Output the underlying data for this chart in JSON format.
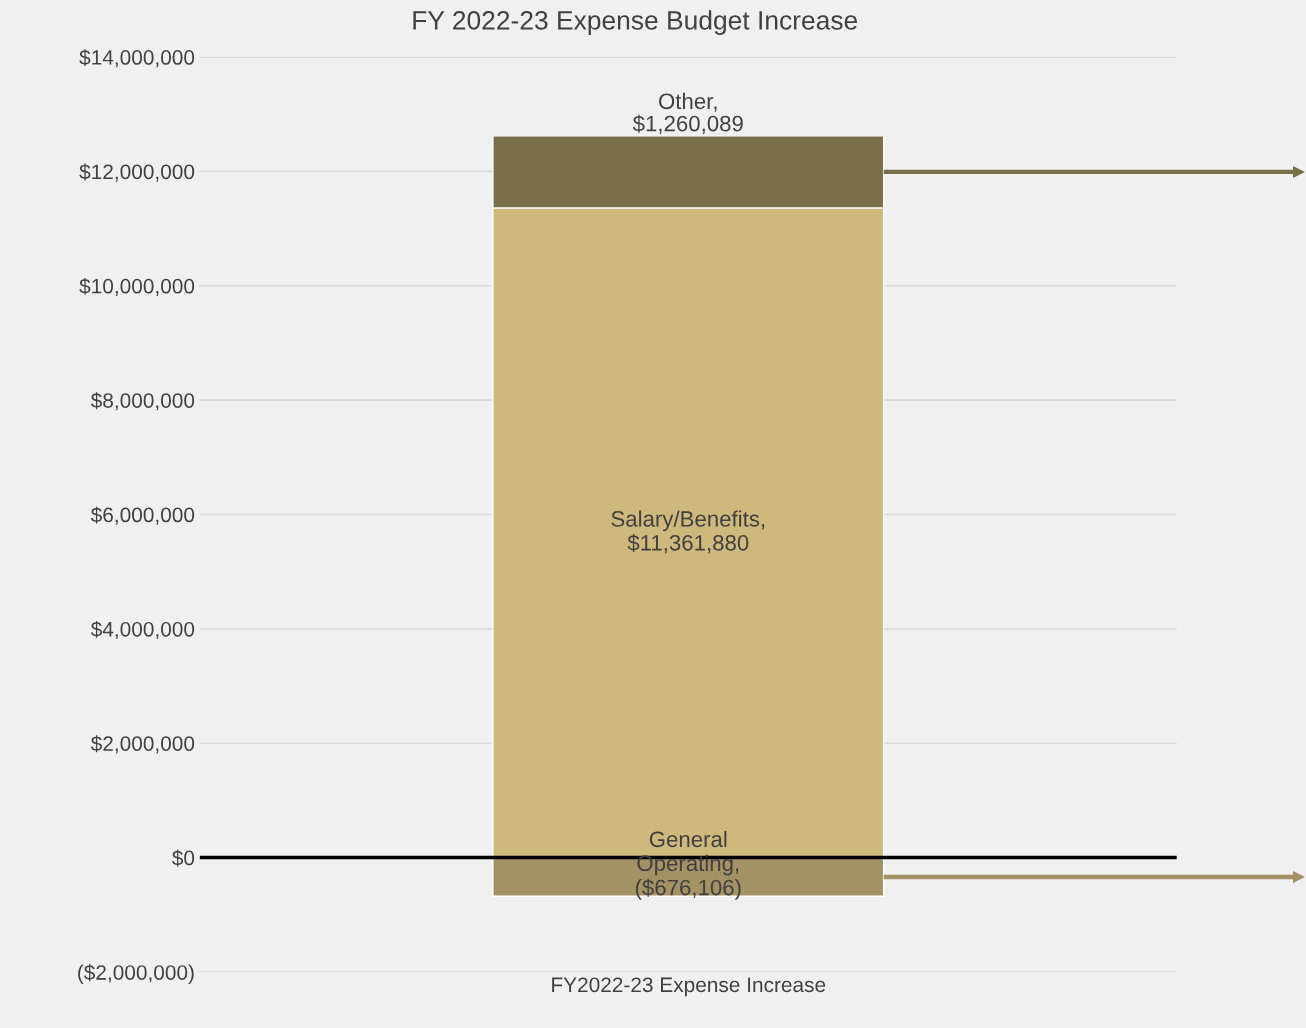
{
  "chart_data": {
    "type": "bar",
    "title": "FY 2022-23 Expense Budget Increase",
    "stacked": true,
    "categories": [
      "FY2022-23 Expense Increase"
    ],
    "series": [
      {
        "color": "#a39264",
        "values": [
          -676106
        ],
        "value_labels": [
          "General Operating, ($676,106)"
        ]
      },
      {
        "color": "#cfb87c",
        "values": [
          11361880
        ],
        "value_labels": [
          "Salary/Benefits, $11,361,880"
        ]
      },
      {
        "color": "#7a6e4b",
        "values": [
          1260089
        ],
        "value_labels": [
          "Other, $1,260,089"
        ]
      }
    ],
    "ylim": [
      -2000000,
      14000000
    ],
    "yticks": [
      {
        "value": -2000000,
        "label": "($2,000,000)"
      },
      {
        "value": 0,
        "label": "$0"
      },
      {
        "value": 2000000,
        "label": "$2,000,000"
      },
      {
        "value": 4000000,
        "label": "$4,000,000"
      },
      {
        "value": 6000000,
        "label": "$6,000,000"
      },
      {
        "value": 8000000,
        "label": "$8,000,000"
      },
      {
        "value": 10000000,
        "label": "$10,000,000"
      },
      {
        "value": 12000000,
        "label": "$12,000,000"
      },
      {
        "value": 14000000,
        "label": "$14,000,000"
      }
    ],
    "ref_lines": [
      {
        "axis": "y",
        "value": 0,
        "color": "#000000"
      }
    ],
    "grid": "y",
    "legend": false
  }
}
